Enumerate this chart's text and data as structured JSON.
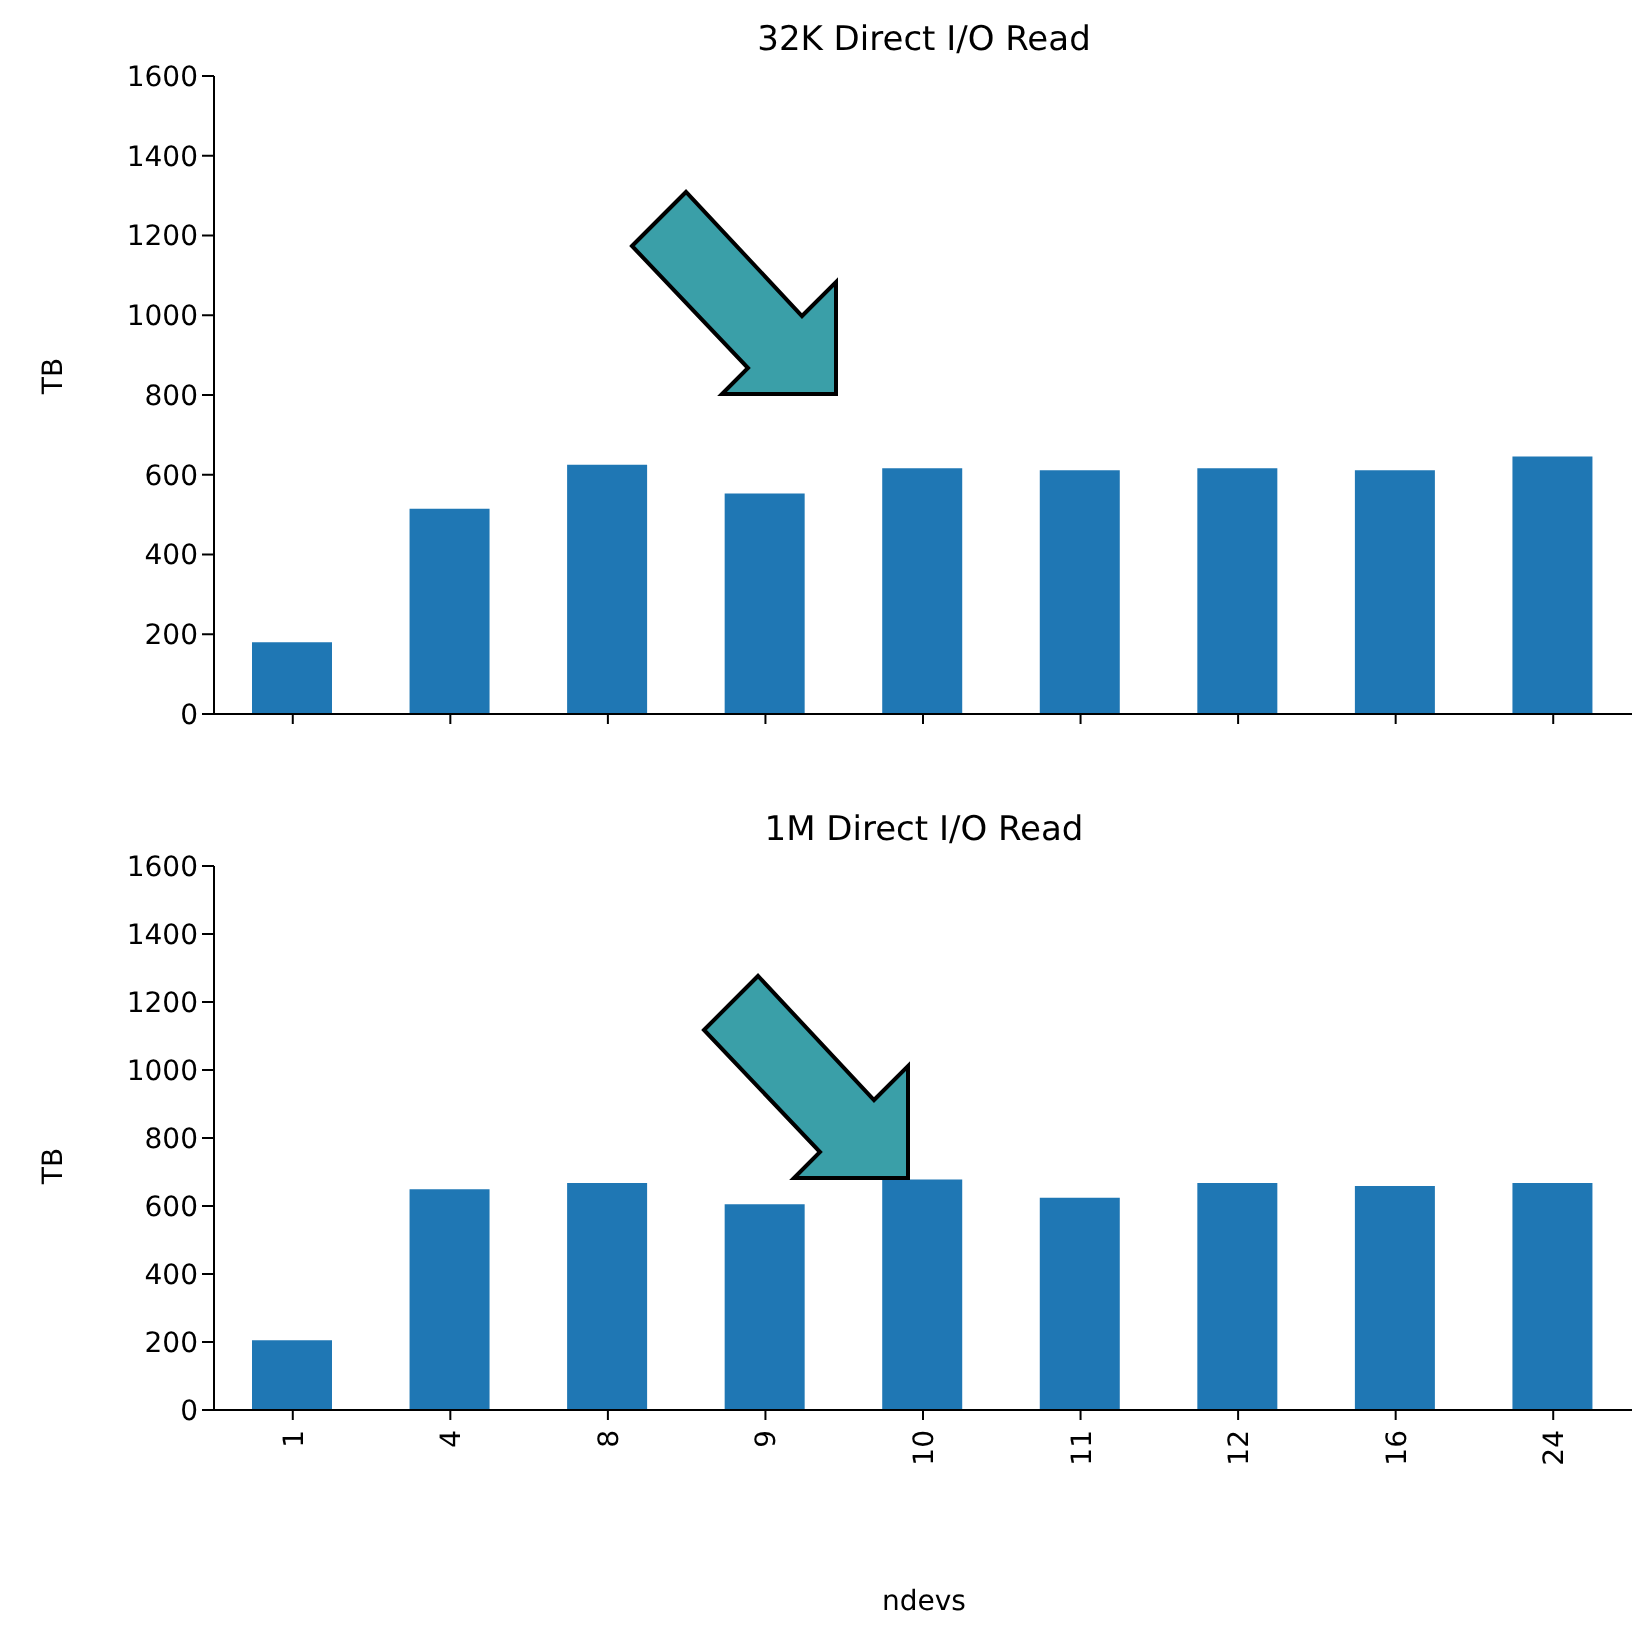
{
  "chart_data": [
    {
      "type": "bar",
      "title": "32K Direct I/O Read",
      "ylabel": "TB",
      "categories": [
        null,
        null,
        null,
        null,
        null,
        null,
        null,
        null,
        null
      ],
      "values": [
        180,
        515,
        625,
        553,
        616,
        611,
        616,
        611,
        646
      ],
      "color": "#1f77b4",
      "ylim": [
        0,
        1600
      ],
      "yticks": [
        0,
        200,
        400,
        600,
        800,
        1000,
        1200,
        1400,
        1600
      ]
    },
    {
      "type": "bar",
      "title": "1M Direct I/O Read",
      "ylabel": "TB",
      "xlabel": "ndevs",
      "categories": [
        "1",
        "4",
        "8",
        "9",
        "10",
        "11",
        "12",
        "16",
        "24"
      ],
      "values": [
        205,
        649,
        668,
        605,
        678,
        624,
        668,
        659,
        668
      ],
      "color": "#1f77b4",
      "ylim": [
        0,
        1600
      ],
      "yticks": [
        0,
        200,
        400,
        600,
        800,
        1000,
        1200,
        1400,
        1600
      ]
    }
  ]
}
